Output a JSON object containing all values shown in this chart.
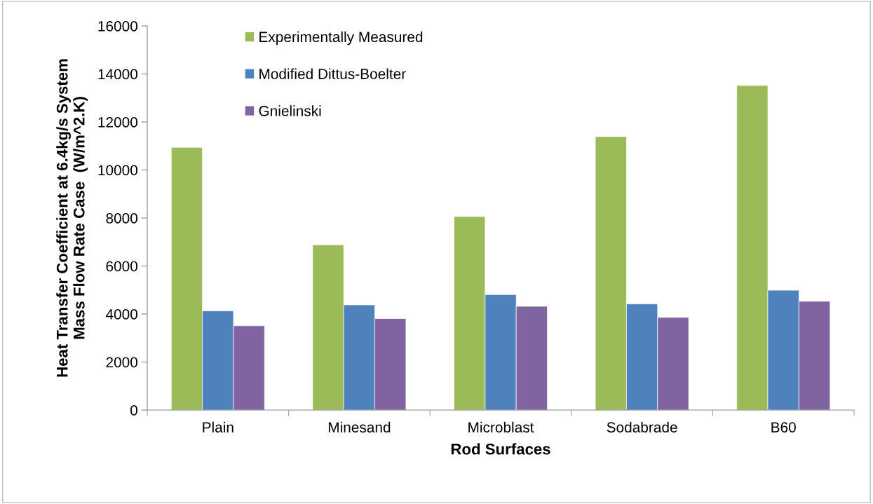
{
  "chart_data": {
    "type": "bar",
    "xlabel": "Rod Surfaces",
    "ylabel": "Heat Transfer Coefficient at 6.4kg/s System\nMass Flow Rate Case  (W/m^2.K)",
    "categories": [
      "Plain",
      "Minesand",
      "Microblast",
      "Sodabrade",
      "B60"
    ],
    "series": [
      {
        "name": "Experimentally Measured",
        "color": "#9bbb59",
        "values": [
          10940,
          6880,
          8060,
          11390,
          13520
        ]
      },
      {
        "name": "Modified Dittus-Boelter",
        "color": "#4f81bd",
        "values": [
          4130,
          4380,
          4810,
          4420,
          4990
        ]
      },
      {
        "name": "Gnielinski",
        "color": "#8064a2",
        "values": [
          3510,
          3810,
          4320,
          3860,
          4530
        ]
      }
    ],
    "ylim": [
      0,
      16000
    ],
    "yticks": [
      0,
      2000,
      4000,
      6000,
      8000,
      10000,
      12000,
      14000,
      16000
    ],
    "grid": false,
    "legend": "top left"
  }
}
